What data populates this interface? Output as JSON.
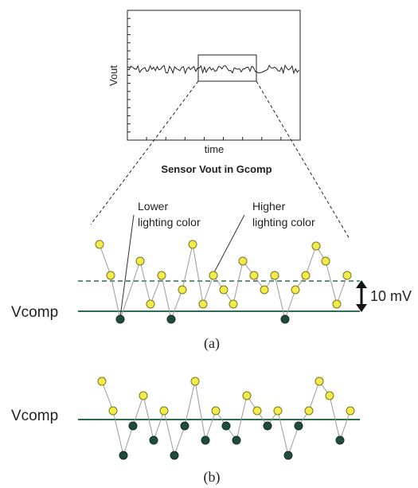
{
  "top_plot": {
    "ylabel": "Vout",
    "xlabel": "time",
    "caption": "Sensor Vout in Gcomp"
  },
  "panel_a": {
    "lower_label": [
      "Lower",
      "lighting color"
    ],
    "higher_label": [
      "Higher",
      "lighting color"
    ],
    "vcomp_label": "Vcomp",
    "offset_label": "10 mV",
    "caption": "(a)"
  },
  "panel_b": {
    "vcomp_label": "Vcomp",
    "caption": "(b)"
  },
  "colors": {
    "higher_point": "#f2ec4a",
    "lower_point": "#1f4d3a",
    "vcomp_line": "#2f6b4e",
    "connector": "#9a9a9a"
  },
  "icons": [
    "double-headed-arrow-icon"
  ]
}
